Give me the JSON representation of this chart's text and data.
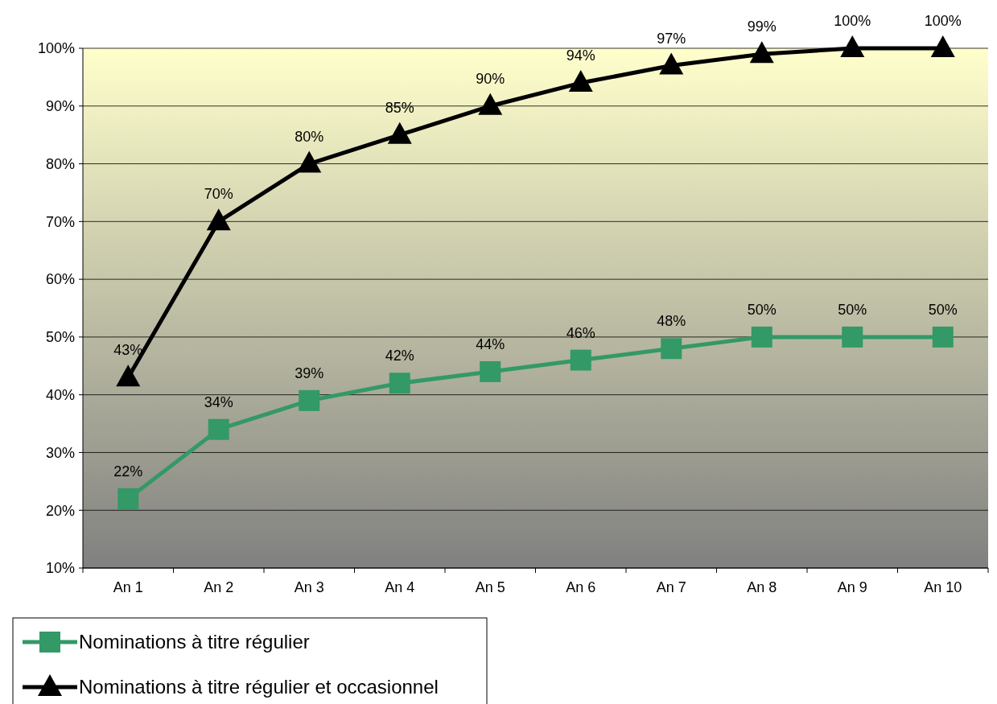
{
  "chart_data": {
    "type": "line",
    "categories": [
      "An 1",
      "An 2",
      "An 3",
      "An 4",
      "An 5",
      "An 6",
      "An 7",
      "An 8",
      "An 9",
      "An 10"
    ],
    "series": [
      {
        "name": "Nominations à titre régulier",
        "color": "#339966",
        "marker": "square",
        "values": [
          22,
          34,
          39,
          42,
          44,
          46,
          48,
          50,
          50,
          50
        ],
        "value_labels": [
          "22%",
          "34%",
          "39%",
          "42%",
          "44%",
          "46%",
          "48%",
          "50%",
          "50%",
          "50%"
        ]
      },
      {
        "name": "Nominations à titre régulier et occasionnel",
        "color": "#000000",
        "marker": "triangle",
        "values": [
          43,
          70,
          80,
          85,
          90,
          94,
          97,
          99,
          100,
          100
        ],
        "value_labels": [
          "43%",
          "70%",
          "80%",
          "85%",
          "90%",
          "94%",
          "97%",
          "99%",
          "100%",
          "100%"
        ]
      }
    ],
    "ylim": [
      10,
      100
    ],
    "yticks": [
      {
        "value": 10,
        "label": "10%"
      },
      {
        "value": 20,
        "label": "20%"
      },
      {
        "value": 30,
        "label": "30%"
      },
      {
        "value": 40,
        "label": "40%"
      },
      {
        "value": 50,
        "label": "50%"
      },
      {
        "value": 60,
        "label": "60%"
      },
      {
        "value": 70,
        "label": "70%"
      },
      {
        "value": 80,
        "label": "80%"
      },
      {
        "value": 90,
        "label": "90%"
      },
      {
        "value": 100,
        "label": "100%"
      }
    ],
    "grid": "y",
    "legend": "bottom left"
  }
}
